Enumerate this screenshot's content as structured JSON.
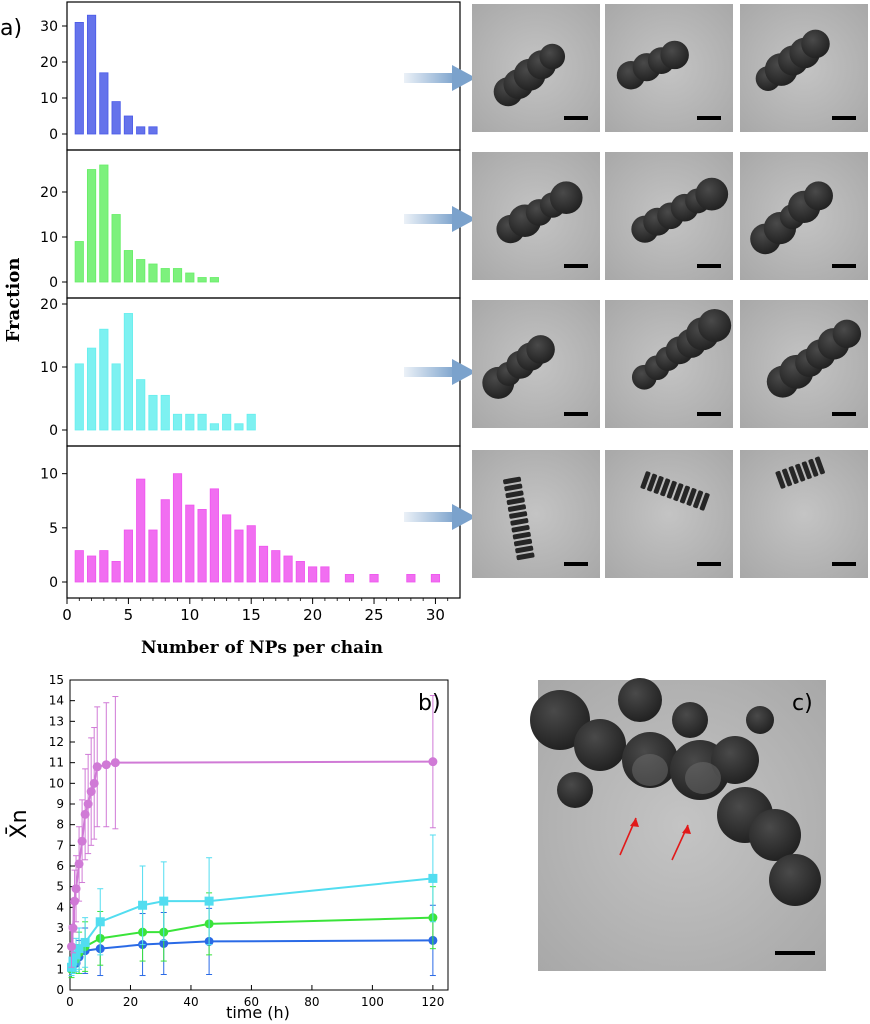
{
  "panel_labels": {
    "a": "a)",
    "b": "b)",
    "c": "c)"
  },
  "colors": {
    "blue": "#4a5ae8",
    "green": "#66ee66",
    "cyan": "#66eeee",
    "magenta": "#ee55ee",
    "line_blue": "#2a6ae6",
    "line_green": "#3ae43a",
    "line_cyan": "#52ddf0",
    "line_magenta": "#d07ad6",
    "arrow": "#7ba2cc",
    "micro_bg": "#b6b6b6",
    "particle": "#2f2f2f",
    "red_arrow": "#e11a1a"
  },
  "chart_data": [
    {
      "type": "bar",
      "panel": "a",
      "ylabel": "Fraction",
      "xlabel": "Number of NPs per chain",
      "xlim": [
        0,
        32
      ],
      "xticks": [
        0,
        5,
        10,
        15,
        20,
        25,
        30
      ],
      "series": [
        {
          "color": "#4a5ae8",
          "ylim": [
            0,
            35
          ],
          "yticks": [
            0,
            10,
            20,
            30
          ],
          "x": [
            1,
            2,
            3,
            4,
            5,
            6,
            7
          ],
          "values": [
            31,
            33,
            17,
            9,
            5,
            2,
            2
          ]
        },
        {
          "color": "#66ee66",
          "ylim": [
            0,
            28
          ],
          "yticks": [
            0,
            10,
            20
          ],
          "x": [
            1,
            2,
            3,
            4,
            5,
            6,
            7,
            8,
            9,
            10,
            11,
            12
          ],
          "values": [
            9,
            25,
            26,
            15,
            7,
            5,
            4,
            3,
            3,
            2,
            1,
            1
          ]
        },
        {
          "color": "#66eeee",
          "ylim": [
            0,
            20
          ],
          "yticks": [
            0,
            10,
            20
          ],
          "x": [
            1,
            2,
            3,
            4,
            5,
            6,
            7,
            8,
            9,
            10,
            11,
            12,
            13,
            14,
            15
          ],
          "values": [
            10.5,
            13,
            16,
            10.5,
            18.5,
            8,
            5.5,
            5.5,
            2.5,
            2.5,
            2.5,
            1,
            2.5,
            1,
            2.5
          ]
        },
        {
          "color": "#ee55ee",
          "ylim": [
            0,
            12
          ],
          "yticks": [
            0,
            5,
            10
          ],
          "x": [
            1,
            2,
            3,
            4,
            5,
            6,
            7,
            8,
            9,
            10,
            11,
            12,
            13,
            14,
            15,
            16,
            17,
            18,
            19,
            20,
            21,
            23,
            25,
            28,
            30
          ],
          "values": [
            2.9,
            2.4,
            2.9,
            1.9,
            4.8,
            9.5,
            4.8,
            7.6,
            10,
            7.1,
            6.7,
            8.6,
            6.2,
            4.8,
            5.2,
            3.3,
            2.9,
            2.4,
            1.9,
            1.4,
            1.4,
            0.7,
            0.7,
            0.7,
            0.7
          ]
        }
      ]
    },
    {
      "type": "line",
      "panel": "b",
      "xlabel": "time (h)",
      "ylabel": "X̄n",
      "xlim": [
        0,
        125
      ],
      "ylim": [
        0,
        15
      ],
      "xticks": [
        0,
        20,
        40,
        60,
        80,
        100,
        120
      ],
      "yticks": [
        0,
        1,
        2,
        3,
        4,
        5,
        6,
        7,
        8,
        9,
        10,
        11,
        12,
        13,
        14,
        15
      ],
      "series": [
        {
          "color": "#2a6ae6",
          "marker": "circle",
          "x": [
            0.5,
            1,
            2,
            3,
            5,
            10,
            24,
            31,
            46,
            120
          ],
          "y": [
            1.0,
            1.2,
            1.3,
            1.6,
            1.9,
            2.0,
            2.2,
            2.25,
            2.35,
            2.4
          ],
          "err": [
            0.3,
            0.4,
            0.5,
            0.8,
            1.1,
            1.3,
            1.5,
            1.5,
            1.6,
            1.7
          ]
        },
        {
          "color": "#3ae43a",
          "marker": "circle",
          "x": [
            0.5,
            1,
            2,
            3,
            5,
            10,
            24,
            31,
            46,
            120
          ],
          "y": [
            1.0,
            1.3,
            1.5,
            1.8,
            2.1,
            2.5,
            2.8,
            2.8,
            3.2,
            3.5
          ],
          "err": [
            0.4,
            0.5,
            0.7,
            1.0,
            1.2,
            1.3,
            1.4,
            1.4,
            1.5,
            1.5
          ]
        },
        {
          "color": "#52ddf0",
          "marker": "square",
          "x": [
            0.5,
            1,
            2,
            3,
            5,
            10,
            24,
            31,
            46,
            120
          ],
          "y": [
            1.1,
            1.4,
            1.7,
            2.0,
            2.3,
            3.3,
            4.1,
            4.3,
            4.3,
            5.4
          ],
          "err": [
            0.4,
            0.6,
            0.8,
            1.0,
            1.2,
            1.6,
            1.9,
            1.9,
            2.1,
            2.1
          ]
        },
        {
          "color": "#d07ad6",
          "marker": "circle",
          "x": [
            0.5,
            1,
            1.5,
            2,
            3,
            4,
            5,
            6,
            7,
            8,
            9,
            12,
            15,
            120
          ],
          "y": [
            2.1,
            3.0,
            4.3,
            4.9,
            6.1,
            7.2,
            8.5,
            9.0,
            9.6,
            10.0,
            10.8,
            10.9,
            11.0,
            11.05
          ],
          "err": [
            1.0,
            1.2,
            1.5,
            1.6,
            1.8,
            2.0,
            2.2,
            2.4,
            2.6,
            2.7,
            2.9,
            3.0,
            3.2,
            3.2
          ]
        }
      ]
    }
  ],
  "micrographs": {
    "rows": [
      {
        "style": "sphere",
        "images": [
          {},
          {},
          {}
        ]
      },
      {
        "style": "sphere",
        "images": [
          {},
          {},
          {}
        ]
      },
      {
        "style": "sphere",
        "images": [
          {},
          {},
          {}
        ]
      },
      {
        "style": "rod",
        "images": [
          {},
          {},
          {}
        ]
      }
    ],
    "c_panel": {
      "arrows": 2
    }
  }
}
